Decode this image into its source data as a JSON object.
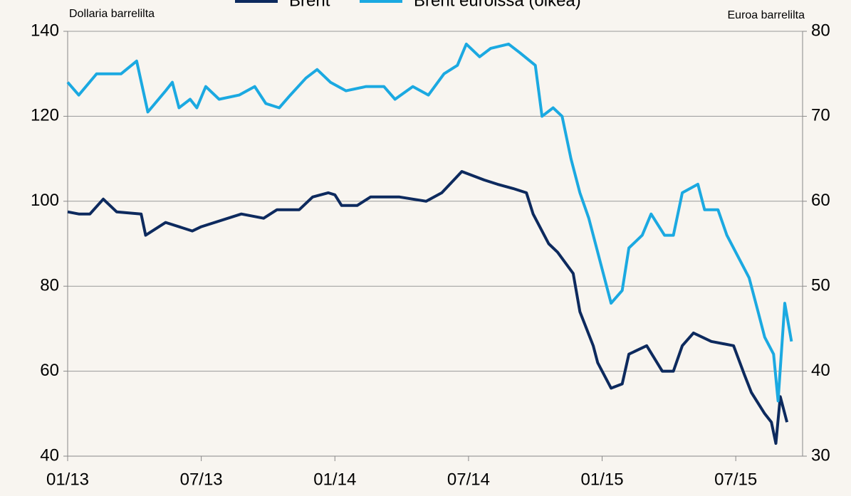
{
  "chart_data": {
    "type": "line",
    "legend": "top",
    "ylabel": "Dollaria barrelilta",
    "y2label": "Euroa barrelilta",
    "xlim": [
      0,
      33
    ],
    "xticks": [
      {
        "value": 0,
        "label": "01/13"
      },
      {
        "value": 6,
        "label": "07/13"
      },
      {
        "value": 12,
        "label": "01/14"
      },
      {
        "value": 18,
        "label": "07/14"
      },
      {
        "value": 24,
        "label": "01/15"
      },
      {
        "value": 30,
        "label": "07/15"
      }
    ],
    "ylim": [
      40,
      140
    ],
    "yticks": [
      40,
      60,
      80,
      100,
      120,
      140
    ],
    "y2lim": [
      30,
      80
    ],
    "y2ticks": [
      30,
      40,
      50,
      60,
      70,
      80
    ],
    "grid": true,
    "series": [
      {
        "name": "Brent",
        "color": "#0d2a5e",
        "x": [
          0,
          0.5,
          1.0,
          1.6,
          2.2,
          3.3,
          3.5,
          4.4,
          5.6,
          6.0,
          7.8,
          8.8,
          9.4,
          10.4,
          11.0,
          11.7,
          12.0,
          12.3,
          13.0,
          13.6,
          14.9,
          16.1,
          16.8,
          17.7,
          18.7,
          19.3,
          20.0,
          20.6,
          20.9,
          21.6,
          22.0,
          22.7,
          23.0,
          23.6,
          23.8,
          24.4,
          24.9,
          25.2,
          26.0,
          26.7,
          27.2,
          27.6,
          28.1,
          28.9,
          29.9,
          30.4,
          30.7,
          31.3,
          31.6,
          31.8,
          32.0,
          32.3
        ],
        "values": [
          97.5,
          97,
          97,
          100.5,
          97.5,
          97,
          92,
          95,
          93,
          94,
          97,
          96,
          98,
          98,
          101,
          102,
          101.5,
          99,
          99,
          101,
          101,
          100,
          102,
          107,
          105,
          104,
          103,
          102,
          97,
          90,
          88,
          83,
          74,
          66,
          62,
          56,
          57,
          64,
          66,
          60,
          60,
          66,
          69,
          67,
          66,
          59,
          55,
          50,
          48,
          43,
          54,
          48
        ]
      },
      {
        "name": "Brent euroissa (oikea)",
        "color": "#1ba9e1",
        "axis": "y2",
        "x": [
          0,
          0.5,
          1.3,
          2.4,
          3.1,
          3.6,
          4.4,
          4.7,
          5.0,
          5.5,
          5.8,
          6.2,
          6.8,
          7.7,
          8.4,
          8.9,
          9.5,
          10.0,
          10.7,
          11.2,
          11.8,
          12.5,
          13.4,
          14.2,
          14.7,
          15.5,
          16.2,
          16.9,
          17.5,
          17.9,
          18.5,
          19.0,
          19.8,
          20.3,
          21.0,
          21.3,
          21.8,
          22.2,
          22.6,
          23.0,
          23.4,
          23.8,
          24.4,
          24.9,
          25.2,
          25.8,
          26.2,
          26.8,
          27.2,
          27.6,
          28.3,
          28.6,
          29.2,
          29.6,
          30.1,
          30.6,
          31.0,
          31.3,
          31.7,
          31.9,
          32.2,
          32.5
        ],
        "values": [
          74,
          72.5,
          75,
          75,
          76.5,
          70.5,
          73,
          74,
          71,
          72,
          71,
          73.5,
          72,
          72.5,
          73.5,
          71.5,
          71,
          72.5,
          74.5,
          75.5,
          74,
          73,
          73.5,
          73.5,
          72,
          73.5,
          72.5,
          75,
          76,
          78.5,
          77,
          78,
          78.5,
          77.5,
          76,
          70,
          71,
          70,
          65,
          61,
          58,
          54,
          48,
          49.5,
          54.5,
          56,
          58.5,
          56,
          56,
          61,
          62,
          59,
          59,
          56,
          53.5,
          51,
          47,
          44,
          42,
          36.5,
          48,
          43.5
        ]
      }
    ]
  }
}
